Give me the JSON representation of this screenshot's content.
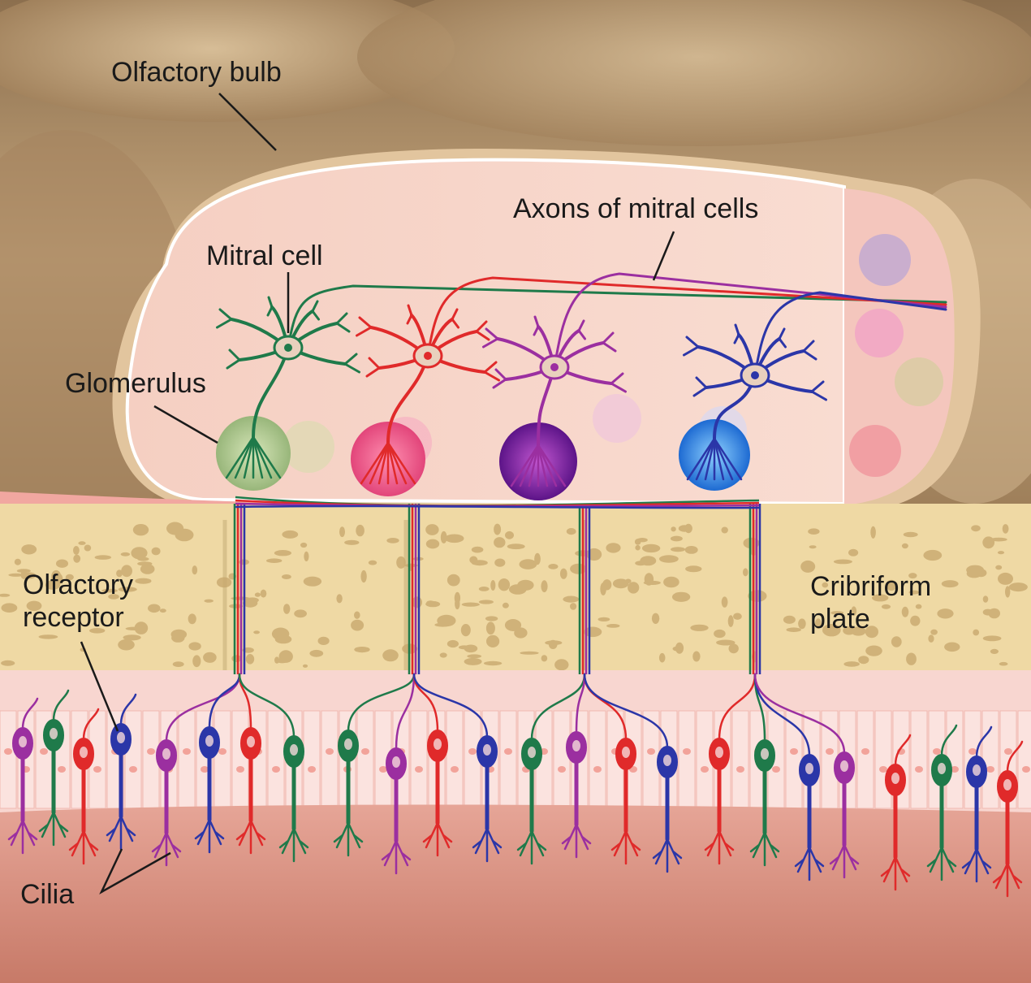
{
  "labels": {
    "olfactory_bulb": "Olfactory bulb",
    "axons_of_mitral_cells": "Axons of mitral cells",
    "mitral_cell": "Mitral cell",
    "glomerulus": "Glomerulus",
    "olfactory_receptor_line1": "Olfactory",
    "olfactory_receptor_line2": "receptor",
    "cribriform_plate_line1": "Cribriform",
    "cribriform_plate_line2": "plate",
    "cilia": "Cilia"
  },
  "colors": {
    "green": "#1f7a4a",
    "red": "#e02a2a",
    "purple": "#9b2fa0",
    "blue": "#2b36a8",
    "bone": "#efd9a4",
    "brain": "#b89a72",
    "bulb_interior": "#f7d5c8",
    "epithelium": "#f6c8c0",
    "mucosa": "#d98c7a"
  },
  "receptor_colors": [
    "purple",
    "green",
    "red",
    "blue",
    "purple",
    "blue",
    "red",
    "green",
    "green",
    "purple",
    "red",
    "blue",
    "green",
    "purple",
    "red",
    "blue",
    "red",
    "green",
    "blue",
    "purple",
    "red",
    "green",
    "blue",
    "red"
  ],
  "mitral_colors": [
    "green",
    "red",
    "purple",
    "blue"
  ]
}
